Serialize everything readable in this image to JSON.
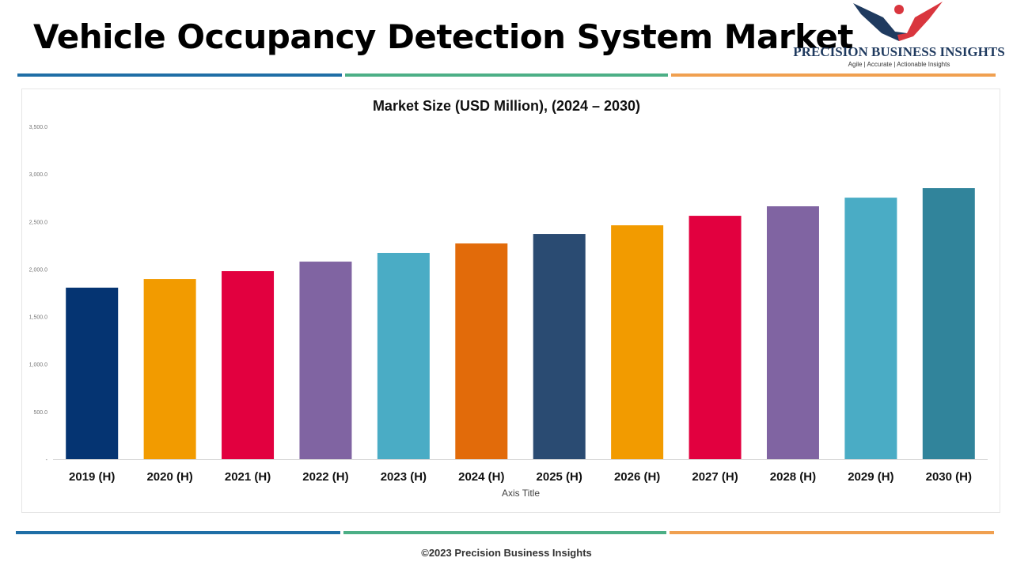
{
  "header": {
    "title": "Vehicle Occupancy Detection System Market"
  },
  "logo": {
    "name": "PRECISION BUSINESS INSIGHTS",
    "tagline": "Agile | Accurate | Actionable Insights"
  },
  "colors": {
    "rule": [
      "#1f6ea6",
      "#4caf86",
      "#f0a050"
    ]
  },
  "chart_data": {
    "type": "bar",
    "title": "Market Size (USD Million), (2024 – 2030)",
    "xlabel": "Axis Title",
    "ylabel": "",
    "ylim": [
      0,
      3500
    ],
    "yticks": [
      0,
      500,
      1000,
      1500,
      2000,
      2500,
      3000,
      3500
    ],
    "ytick_labels": [
      "-",
      "500.0",
      "1,000.0",
      "1,500.0",
      "2,000.0",
      "2,500.0",
      "3,000.0",
      "3,500.0"
    ],
    "categories": [
      "2019 (H)",
      "2020 (H)",
      "2021 (H)",
      "2022 (H)",
      "2023 (H)",
      "2024 (H)",
      "2025 (H)",
      "2026 (H)",
      "2027 (H)",
      "2028 (H)",
      "2029 (H)",
      "2030 (H)"
    ],
    "values": [
      1804,
      1895,
      1978,
      2078,
      2170,
      2269,
      2369,
      2460,
      2560,
      2660,
      2751,
      2851
    ],
    "colors": [
      "#053472",
      "#f29b00",
      "#e2003f",
      "#8064a2",
      "#4aacc5",
      "#e26b0a",
      "#2a4b72",
      "#f29b00",
      "#e2003f",
      "#8064a2",
      "#4aacc5",
      "#31849b"
    ],
    "grid": false,
    "legend": "none"
  },
  "footer": {
    "copyright": "©2023 Precision Business Insights"
  }
}
